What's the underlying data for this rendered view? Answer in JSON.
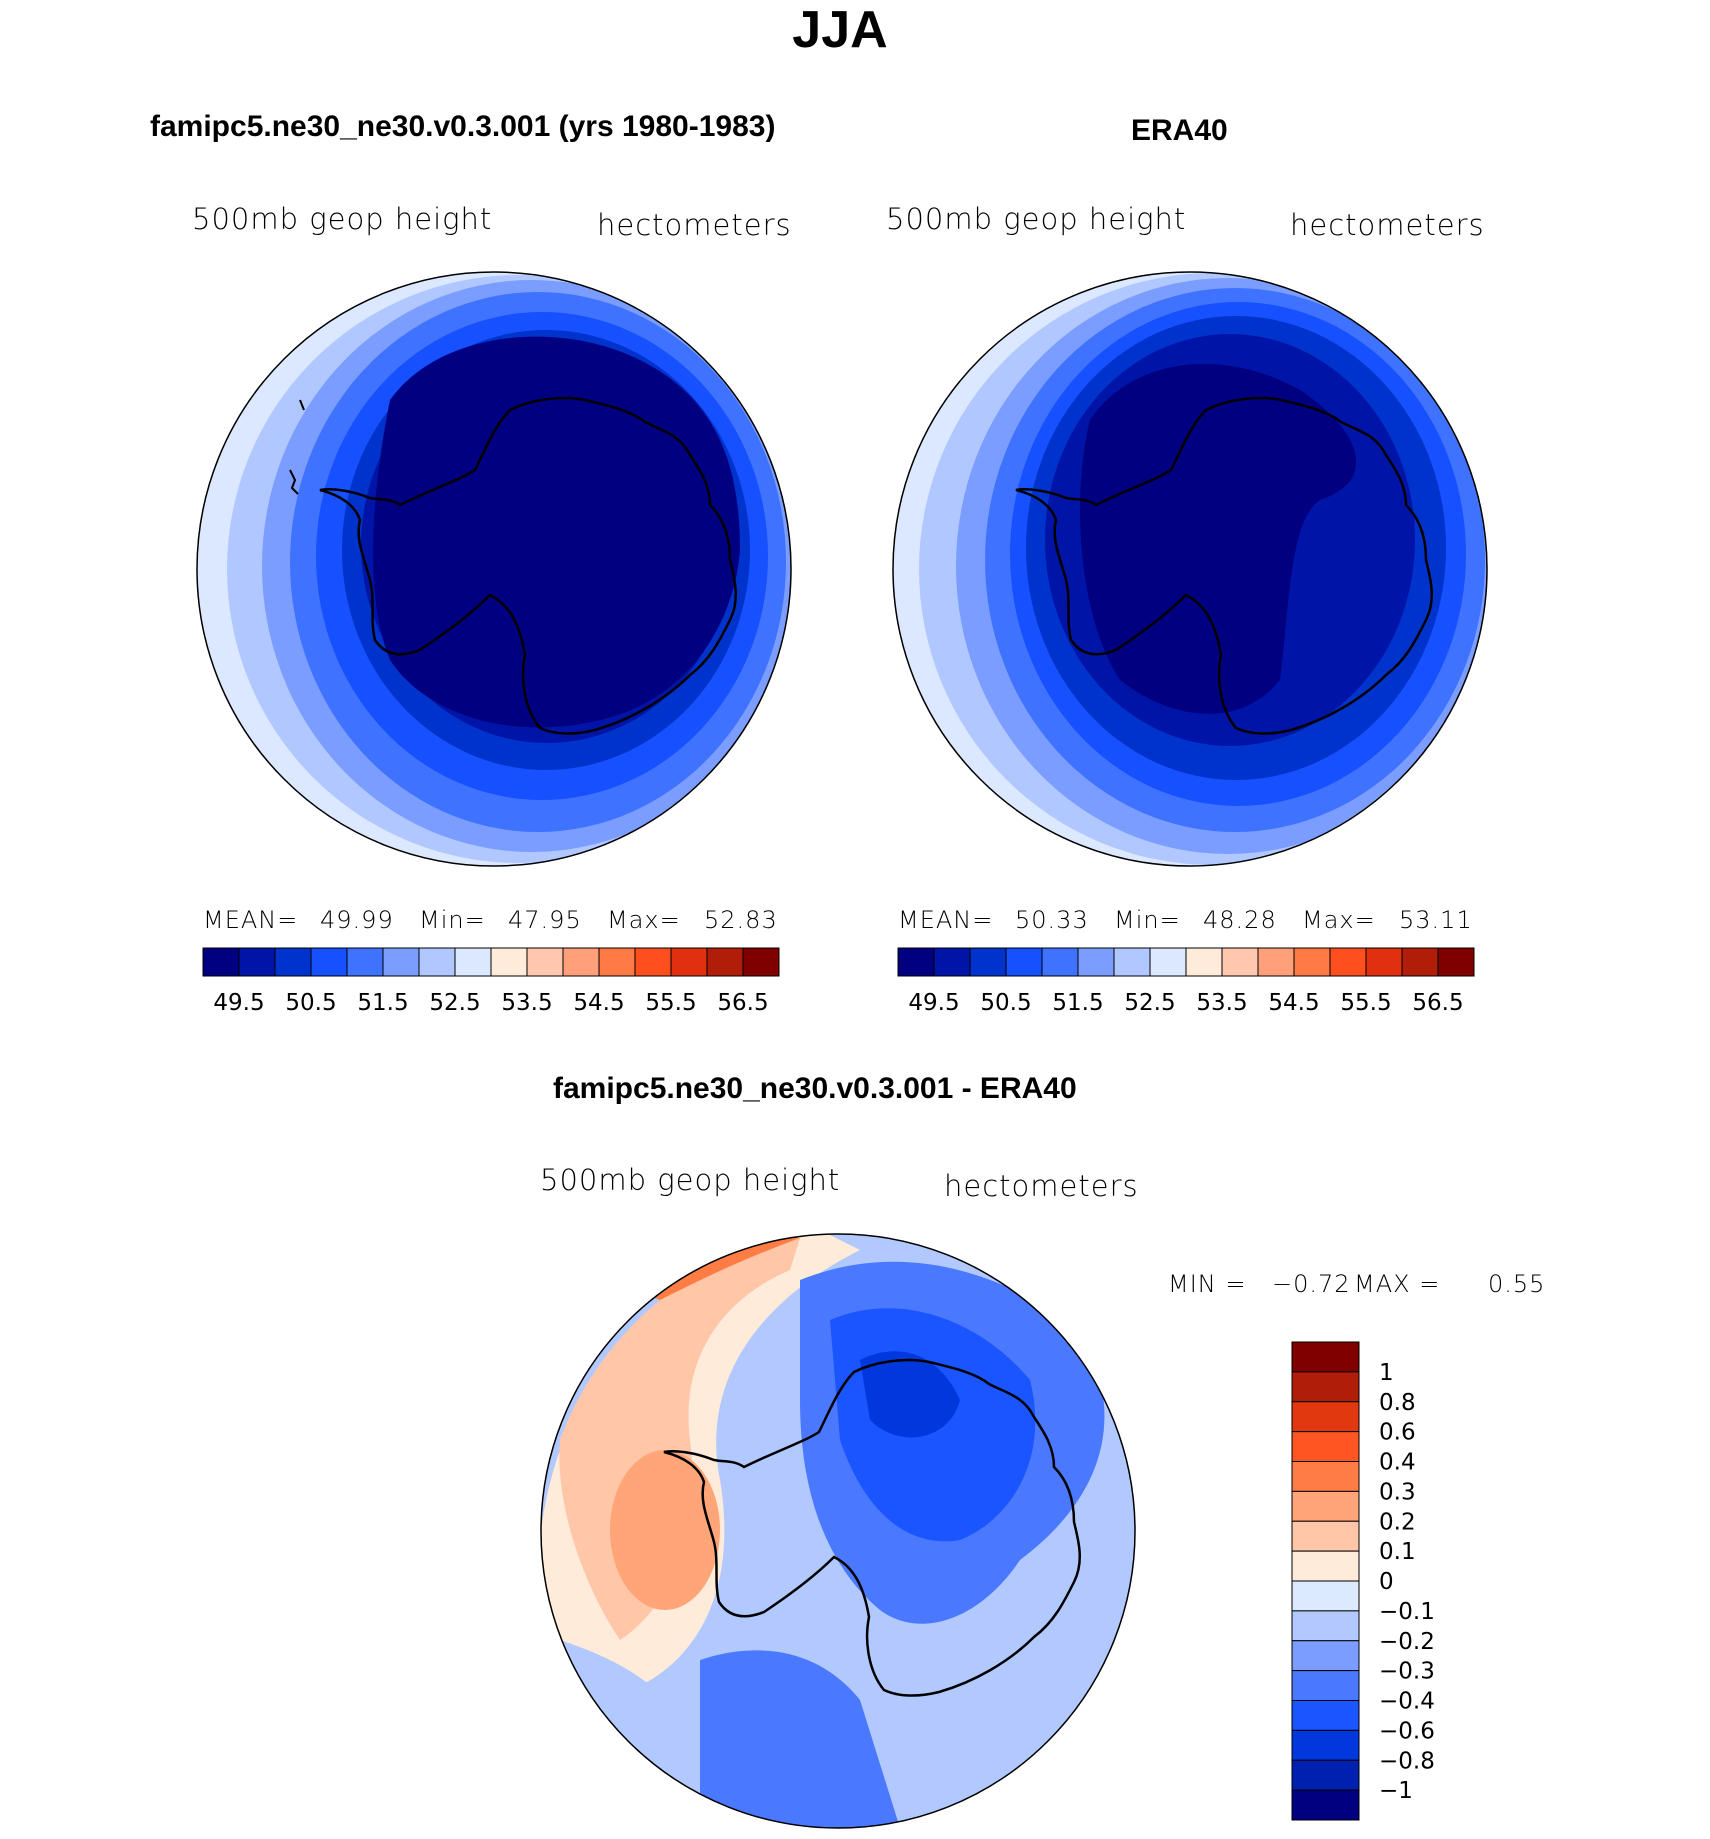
{
  "main_title": "JJA",
  "panels": [
    {
      "title": "famipc5.ne30_ne30.v0.3.001 (yrs 1980-1983)",
      "variable": "500mb geop height",
      "units": "hectometers",
      "stats": {
        "mean_label": "MEAN=",
        "mean": "49.99",
        "min_label": "Min=",
        "min": "47.95",
        "max_label": "Max=",
        "max": "52.83"
      },
      "colorbar_ticks": [
        "49.5",
        "50.5",
        "51.5",
        "52.5",
        "53.5",
        "54.5",
        "55.5",
        "56.5"
      ]
    },
    {
      "title": "ERA40",
      "variable": "500mb geop height",
      "units": "hectometers",
      "stats": {
        "mean_label": "MEAN=",
        "mean": "50.33",
        "min_label": "Min=",
        "min": "48.28",
        "max_label": "Max=",
        "max": "53.11"
      },
      "colorbar_ticks": [
        "49.5",
        "50.5",
        "51.5",
        "52.5",
        "53.5",
        "54.5",
        "55.5",
        "56.5"
      ]
    }
  ],
  "diff_panel": {
    "title": "famipc5.ne30_ne30.v0.3.001 - ERA40",
    "variable": "500mb geop height",
    "units": "hectometers",
    "min_label": "MIN =",
    "min": "−0.72",
    "max_label": "MAX =",
    "max": "0.55",
    "colorbar_ticks": [
      "1",
      "0.8",
      "0.6",
      "0.4",
      "0.3",
      "0.2",
      "0.1",
      "0",
      "−0.1",
      "−0.2",
      "−0.3",
      "−0.4",
      "−0.6",
      "−0.8",
      "−1"
    ]
  },
  "colors": {
    "levels16": [
      "#000080",
      "#0015a8",
      "#0033cc",
      "#1650ff",
      "#3f73ff",
      "#7a9dff",
      "#b0c8ff",
      "#dbe8ff",
      "#ffebd9",
      "#ffc8ae",
      "#ffa07a",
      "#ff7a45",
      "#ff4f1f",
      "#e03010",
      "#b01e0a",
      "#800000"
    ],
    "diff16": [
      "#000080",
      "#0020b0",
      "#0038dd",
      "#1a55ff",
      "#4a79ff",
      "#7a9dff",
      "#b2c9ff",
      "#dceaff",
      "#ffebd9",
      "#ffc6a8",
      "#ffa577",
      "#ff7d45",
      "#ff5522",
      "#e2380f",
      "#b01e0a",
      "#800000"
    ]
  }
}
